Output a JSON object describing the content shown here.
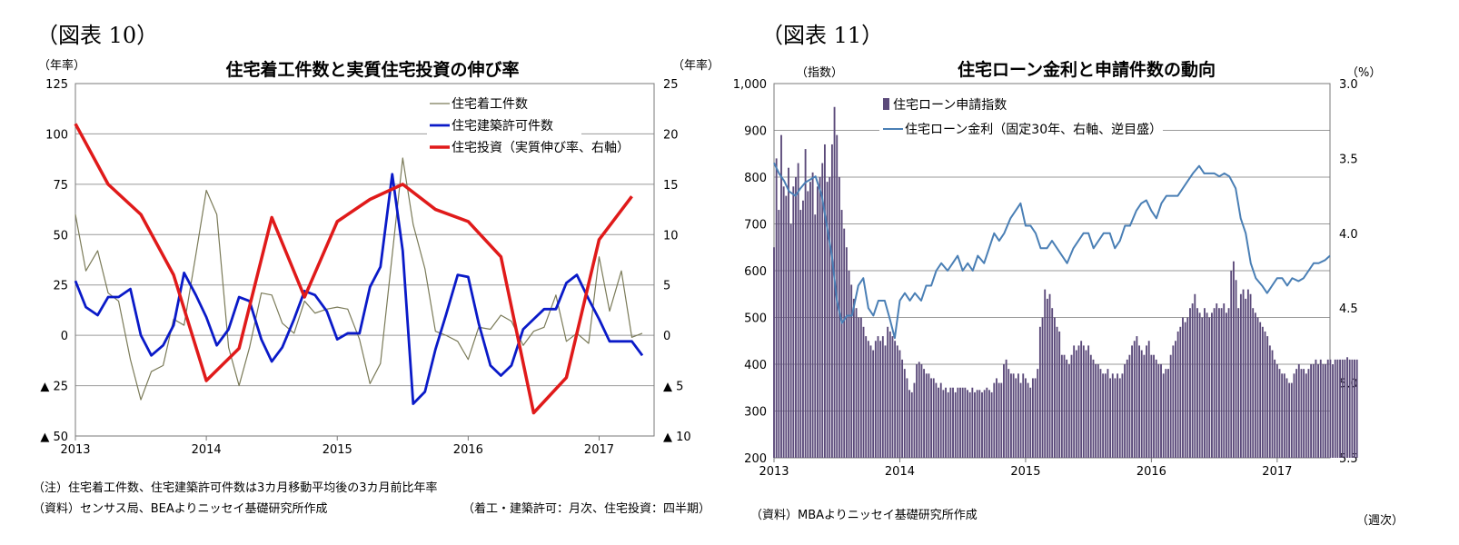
{
  "left": {
    "figure_label": "（図表 10）",
    "notes": [
      "（注）住宅着工件数、住宅建築許可件数は3カ月移動平均後の3カ月前比年率",
      "（資料）センサス局、BEAよりニッセイ基礎研究所作成"
    ],
    "frequency_note": "（着工・建築許可：月次、住宅投資：四半期）"
  },
  "right": {
    "figure_label": "（図表 11）",
    "source": "（資料）MBAよりニッセイ基礎研究所作成",
    "frequency_note": "（週次）"
  },
  "chart_data": [
    {
      "type": "line",
      "title": "住宅着工件数と実質住宅投資の伸び率",
      "y_left_unit": "（年率）",
      "y_right_unit": "（年率）",
      "x_ticks": [
        "2013",
        "2014",
        "2015",
        "2016",
        "2017"
      ],
      "x_range": [
        2013.0,
        2017.42
      ],
      "y_left": {
        "range": [
          -50,
          125
        ],
        "ticks": [
          125,
          100,
          75,
          50,
          25,
          0,
          -25,
          -50
        ],
        "tick_labels": [
          "125",
          "100",
          "75",
          "50",
          "25",
          "0",
          "▲ 25",
          "▲ 50"
        ]
      },
      "y_right": {
        "range": [
          -10,
          25
        ],
        "ticks": [
          25,
          20,
          15,
          10,
          5,
          0,
          -5,
          -10
        ],
        "tick_labels": [
          "25",
          "20",
          "15",
          "10",
          "5",
          "0",
          "▲ 5",
          "▲ 10"
        ]
      },
      "grid": "horizontal",
      "legend_position": "top-right",
      "series": [
        {
          "name": "住宅着工件数",
          "axis": "left",
          "color": "#7a7a58",
          "width": 1.2,
          "x": [
            2013.0,
            2013.08,
            2013.17,
            2013.25,
            2013.33,
            2013.42,
            2013.5,
            2013.58,
            2013.67,
            2013.75,
            2013.83,
            2013.92,
            2014.0,
            2014.08,
            2014.17,
            2014.25,
            2014.33,
            2014.42,
            2014.5,
            2014.58,
            2014.67,
            2014.75,
            2014.83,
            2014.92,
            2015.0,
            2015.08,
            2015.17,
            2015.25,
            2015.33,
            2015.42,
            2015.5,
            2015.58,
            2015.67,
            2015.75,
            2015.83,
            2015.92,
            2016.0,
            2016.08,
            2016.17,
            2016.25,
            2016.33,
            2016.42,
            2016.5,
            2016.58,
            2016.67,
            2016.75,
            2016.83,
            2016.92,
            2017.0,
            2017.08,
            2017.17,
            2017.25,
            2017.33
          ],
          "values": [
            60,
            32,
            42,
            21,
            17,
            -12,
            -32,
            -18,
            -15,
            8,
            5,
            40,
            72,
            60,
            -6,
            -25,
            -6,
            21,
            20,
            6,
            1,
            17,
            11,
            13,
            14,
            13,
            -2,
            -24,
            -14,
            40,
            88,
            55,
            33,
            2,
            0,
            -3,
            -12,
            4,
            3,
            10,
            7,
            -5,
            2,
            4,
            20,
            -3,
            1,
            -4,
            39,
            12,
            32,
            -1,
            1
          ]
        },
        {
          "name": "住宅建築許可件数",
          "axis": "left",
          "color": "#0a1ac8",
          "width": 2.8,
          "x": [
            2013.0,
            2013.08,
            2013.17,
            2013.25,
            2013.33,
            2013.42,
            2013.5,
            2013.58,
            2013.67,
            2013.75,
            2013.83,
            2013.92,
            2014.0,
            2014.08,
            2014.17,
            2014.25,
            2014.33,
            2014.42,
            2014.5,
            2014.58,
            2014.67,
            2014.75,
            2014.83,
            2014.92,
            2015.0,
            2015.08,
            2015.17,
            2015.25,
            2015.33,
            2015.42,
            2015.5,
            2015.58,
            2015.67,
            2015.75,
            2015.83,
            2015.92,
            2016.0,
            2016.08,
            2016.17,
            2016.25,
            2016.33,
            2016.42,
            2016.5,
            2016.58,
            2016.67,
            2016.75,
            2016.83,
            2016.92,
            2017.0,
            2017.08,
            2017.17,
            2017.25,
            2017.33
          ],
          "values": [
            27,
            14,
            10,
            19,
            19,
            23,
            0,
            -10,
            -5,
            5,
            31,
            20,
            9,
            -5,
            3,
            19,
            17,
            -2,
            -13,
            -6,
            8,
            22,
            20,
            12,
            -2,
            1,
            1,
            24,
            34,
            80,
            42,
            -34,
            -28,
            -7,
            10,
            30,
            29,
            6,
            -15,
            -20,
            -15,
            3,
            8,
            13,
            13,
            26,
            30,
            18,
            8,
            -3,
            -3,
            -3,
            -10
          ]
        },
        {
          "name": "住宅投資（実質伸び率、右軸）",
          "axis": "right",
          "color": "#e01a1a",
          "width": 3.5,
          "x": [
            2013.0,
            2013.25,
            2013.5,
            2013.75,
            2014.0,
            2014.25,
            2014.5,
            2014.75,
            2015.0,
            2015.25,
            2015.5,
            2015.75,
            2016.0,
            2016.25,
            2016.5,
            2016.75,
            2017.0,
            2017.25
          ],
          "values": [
            21,
            15,
            12,
            6,
            -4.5,
            -1.3,
            11.7,
            3.8,
            11.3,
            13.5,
            15,
            12.5,
            11.3,
            7.8,
            -7.7,
            -4.2,
            9.5,
            13.8
          ]
        }
      ]
    },
    {
      "type": "bar",
      "title": "住宅ローン金利と申請件数の動向",
      "y_left_unit": "（指数）",
      "y_right_unit": "（%）",
      "x_ticks": [
        "2013",
        "2014",
        "2015",
        "2016",
        "2017"
      ],
      "x_range": [
        2013.0,
        2017.42
      ],
      "y_left": {
        "range": [
          200,
          1000
        ],
        "ticks": [
          1000,
          900,
          800,
          700,
          600,
          500,
          400,
          300,
          200
        ],
        "tick_labels": [
          "1,000",
          "900",
          "800",
          "700",
          "600",
          "500",
          "400",
          "300",
          "200"
        ]
      },
      "y_right": {
        "range": [
          3.0,
          5.5
        ],
        "inverted": true,
        "ticks": [
          3.0,
          3.5,
          4.0,
          4.5,
          5.0,
          5.5
        ],
        "tick_labels": [
          "3.0",
          "3.5",
          "4.0",
          "4.5",
          "5.0",
          "5.5"
        ]
      },
      "grid": "horizontal",
      "legend_position": "top-left",
      "series": [
        {
          "name": "住宅ローン申請指数",
          "kind": "bar",
          "axis": "left",
          "color": "#5b4a7a",
          "frequency": "weekly",
          "x_start": 2013.0,
          "x_step": 0.01923,
          "values": [
            650,
            840,
            730,
            890,
            780,
            760,
            820,
            700,
            780,
            800,
            830,
            730,
            750,
            860,
            770,
            790,
            810,
            720,
            780,
            800,
            830,
            870,
            790,
            800,
            870,
            950,
            890,
            800,
            730,
            690,
            650,
            600,
            570,
            540,
            520,
            500,
            500,
            480,
            460,
            450,
            440,
            430,
            450,
            460,
            450,
            460,
            440,
            480,
            470,
            460,
            450,
            440,
            430,
            410,
            390,
            370,
            345,
            340,
            360,
            400,
            405,
            400,
            390,
            380,
            380,
            370,
            370,
            360,
            350,
            360,
            345,
            350,
            340,
            350,
            350,
            340,
            350,
            350,
            350,
            350,
            345,
            340,
            350,
            340,
            345,
            345,
            340,
            345,
            350,
            345,
            340,
            360,
            370,
            360,
            360,
            400,
            410,
            390,
            380,
            380,
            370,
            380,
            360,
            380,
            370,
            360,
            350,
            370,
            370,
            390,
            480,
            500,
            560,
            540,
            550,
            520,
            500,
            480,
            470,
            420,
            420,
            410,
            400,
            420,
            440,
            430,
            440,
            450,
            440,
            430,
            440,
            420,
            410,
            400,
            400,
            390,
            380,
            380,
            390,
            370,
            380,
            370,
            380,
            370,
            380,
            400,
            410,
            420,
            440,
            450,
            460,
            440,
            430,
            420,
            440,
            450,
            420,
            420,
            410,
            400,
            400,
            380,
            390,
            390,
            420,
            440,
            450,
            470,
            480,
            500,
            490,
            500,
            520,
            530,
            550,
            520,
            510,
            500,
            520,
            510,
            500,
            510,
            520,
            530,
            520,
            520,
            530,
            510,
            520,
            600,
            620,
            580,
            520,
            550,
            560,
            540,
            560,
            550,
            520,
            510,
            500,
            490,
            480,
            470,
            460,
            440,
            430,
            410,
            400,
            390,
            380,
            380,
            370,
            360,
            360,
            380,
            390,
            400,
            390,
            390,
            380,
            390,
            400,
            400,
            410,
            400,
            410,
            400,
            400,
            410,
            410,
            400,
            410,
            410,
            410,
            410,
            410,
            415,
            410,
            410,
            410,
            410
          ]
        },
        {
          "name": "住宅ローン金利（固定30年、右軸、逆目盛）",
          "kind": "line",
          "axis": "right",
          "color": "#4a7fb5",
          "width": 2.0,
          "x": [
            2013.0,
            2013.04,
            2013.08,
            2013.12,
            2013.17,
            2013.21,
            2013.25,
            2013.29,
            2013.33,
            2013.38,
            2013.42,
            2013.46,
            2013.5,
            2013.54,
            2013.58,
            2013.62,
            2013.67,
            2013.71,
            2013.75,
            2013.79,
            2013.83,
            2013.88,
            2013.92,
            2013.96,
            2014.0,
            2014.04,
            2014.08,
            2014.12,
            2014.17,
            2014.21,
            2014.25,
            2014.29,
            2014.33,
            2014.38,
            2014.42,
            2014.46,
            2014.5,
            2014.54,
            2014.58,
            2014.62,
            2014.67,
            2014.71,
            2014.75,
            2014.79,
            2014.83,
            2014.88,
            2014.92,
            2014.96,
            2015.0,
            2015.04,
            2015.08,
            2015.12,
            2015.17,
            2015.21,
            2015.25,
            2015.29,
            2015.33,
            2015.38,
            2015.42,
            2015.46,
            2015.5,
            2015.54,
            2015.58,
            2015.62,
            2015.67,
            2015.71,
            2015.75,
            2015.79,
            2015.83,
            2015.88,
            2015.92,
            2015.96,
            2016.0,
            2016.04,
            2016.08,
            2016.12,
            2016.17,
            2016.21,
            2016.25,
            2016.29,
            2016.33,
            2016.38,
            2016.42,
            2016.46,
            2016.5,
            2016.54,
            2016.58,
            2016.62,
            2016.67,
            2016.71,
            2016.75,
            2016.79,
            2016.83,
            2016.88,
            2016.92,
            2016.96,
            2017.0,
            2017.04,
            2017.08,
            2017.12,
            2017.17,
            2017.21,
            2017.25,
            2017.29,
            2017.33,
            2017.38,
            2017.42
          ],
          "values": [
            3.53,
            3.6,
            3.65,
            3.72,
            3.75,
            3.7,
            3.66,
            3.64,
            3.62,
            3.75,
            3.95,
            4.15,
            4.45,
            4.6,
            4.55,
            4.55,
            4.35,
            4.3,
            4.5,
            4.55,
            4.45,
            4.45,
            4.57,
            4.7,
            4.45,
            4.4,
            4.45,
            4.4,
            4.45,
            4.35,
            4.35,
            4.25,
            4.2,
            4.25,
            4.2,
            4.15,
            4.25,
            4.2,
            4.25,
            4.15,
            4.2,
            4.1,
            4.0,
            4.05,
            4.0,
            3.9,
            3.85,
            3.8,
            3.95,
            3.95,
            4.0,
            4.1,
            4.1,
            4.05,
            4.1,
            4.15,
            4.2,
            4.1,
            4.05,
            4.0,
            4.0,
            4.1,
            4.05,
            4.0,
            4.0,
            4.1,
            4.05,
            3.95,
            3.95,
            3.85,
            3.8,
            3.78,
            3.85,
            3.9,
            3.8,
            3.75,
            3.75,
            3.75,
            3.7,
            3.65,
            3.6,
            3.55,
            3.6,
            3.6,
            3.6,
            3.62,
            3.6,
            3.62,
            3.7,
            3.9,
            4.0,
            4.2,
            4.3,
            4.35,
            4.4,
            4.35,
            4.3,
            4.3,
            4.35,
            4.3,
            4.32,
            4.3,
            4.25,
            4.2,
            4.2,
            4.18,
            4.15
          ]
        }
      ]
    }
  ]
}
